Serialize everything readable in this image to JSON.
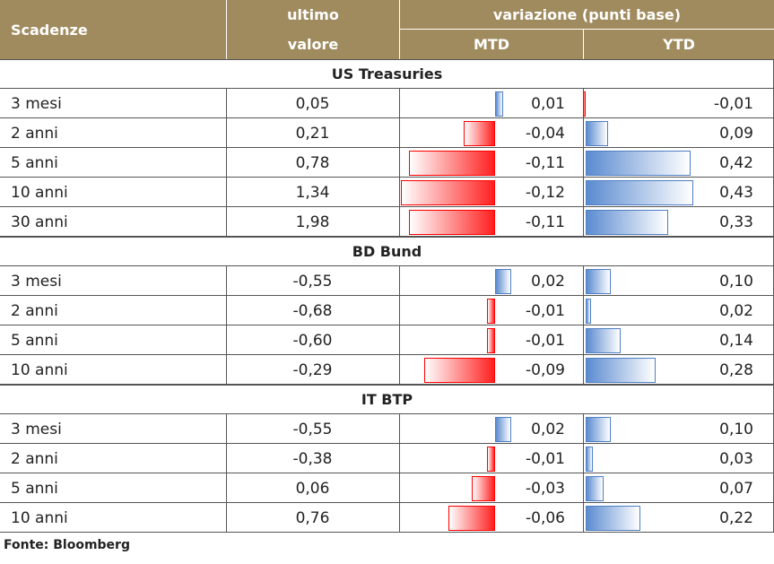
{
  "header": {
    "maturity": "Scadenze",
    "last_line1": "ultimo",
    "last_line2": "valore",
    "change": "variazione (punti base)",
    "mtd": "MTD",
    "ytd": "YTD"
  },
  "sections": [
    {
      "title": "US Treasuries",
      "rows": [
        {
          "maturity": "3 mesi",
          "last": "0,05",
          "mtd": {
            "value": 0.01,
            "label": "0,01"
          },
          "ytd": {
            "value": -0.01,
            "label": "-0,01"
          }
        },
        {
          "maturity": "2 anni",
          "last": "0,21",
          "mtd": {
            "value": -0.04,
            "label": "-0,04"
          },
          "ytd": {
            "value": 0.09,
            "label": "0,09"
          }
        },
        {
          "maturity": "5 anni",
          "last": "0,78",
          "mtd": {
            "value": -0.11,
            "label": "-0,11"
          },
          "ytd": {
            "value": 0.42,
            "label": "0,42"
          }
        },
        {
          "maturity": "10 anni",
          "last": "1,34",
          "mtd": {
            "value": -0.12,
            "label": "-0,12"
          },
          "ytd": {
            "value": 0.43,
            "label": "0,43"
          }
        },
        {
          "maturity": "30 anni",
          "last": "1,98",
          "mtd": {
            "value": -0.11,
            "label": "-0,11"
          },
          "ytd": {
            "value": 0.33,
            "label": "0,33"
          }
        }
      ]
    },
    {
      "title": "BD Bund",
      "rows": [
        {
          "maturity": "3 mesi",
          "last": "-0,55",
          "mtd": {
            "value": 0.02,
            "label": "0,02"
          },
          "ytd": {
            "value": 0.1,
            "label": "0,10"
          }
        },
        {
          "maturity": "2 anni",
          "last": "-0,68",
          "mtd": {
            "value": -0.01,
            "label": "-0,01"
          },
          "ytd": {
            "value": 0.02,
            "label": "0,02"
          }
        },
        {
          "maturity": "5 anni",
          "last": "-0,60",
          "mtd": {
            "value": -0.01,
            "label": "-0,01"
          },
          "ytd": {
            "value": 0.14,
            "label": "0,14"
          }
        },
        {
          "maturity": "10 anni",
          "last": "-0,29",
          "mtd": {
            "value": -0.09,
            "label": "-0,09"
          },
          "ytd": {
            "value": 0.28,
            "label": "0,28"
          }
        }
      ]
    },
    {
      "title": "IT BTP",
      "rows": [
        {
          "maturity": "3 mesi",
          "last": "-0,55",
          "mtd": {
            "value": 0.02,
            "label": "0,02"
          },
          "ytd": {
            "value": 0.1,
            "label": "0,10"
          }
        },
        {
          "maturity": "2 anni",
          "last": "-0,38",
          "mtd": {
            "value": -0.01,
            "label": "-0,01"
          },
          "ytd": {
            "value": 0.03,
            "label": "0,03"
          }
        },
        {
          "maturity": "5 anni",
          "last": "0,06",
          "mtd": {
            "value": -0.03,
            "label": "-0,03"
          },
          "ytd": {
            "value": 0.07,
            "label": "0,07"
          }
        },
        {
          "maturity": "10 anni",
          "last": "0,76",
          "mtd": {
            "value": -0.06,
            "label": "-0,06"
          },
          "ytd": {
            "value": 0.22,
            "label": "0,22"
          }
        }
      ]
    }
  ],
  "source": "Fonte: Bloomberg"
}
